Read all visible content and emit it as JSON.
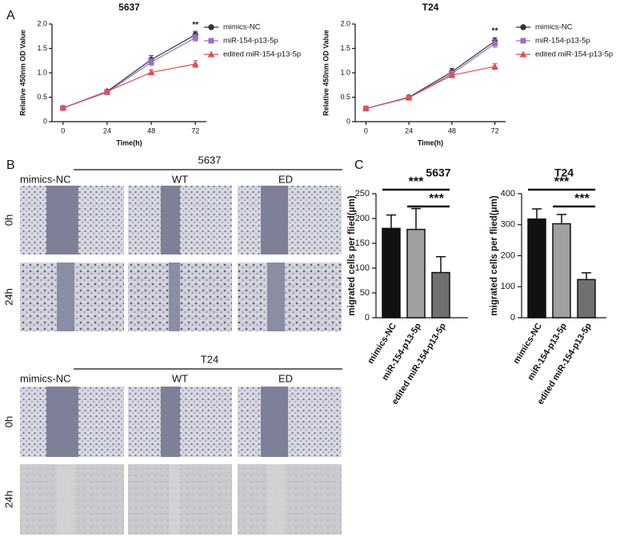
{
  "panel_labels": [
    "A",
    "B",
    "C"
  ],
  "wound_healing": [
    {
      "cell_line": "5637",
      "columns": [
        "mimics-NC",
        "WT",
        "ED"
      ],
      "rows": [
        "0h",
        "24h"
      ]
    },
    {
      "cell_line": "T24",
      "columns": [
        "mimics-NC",
        "WT",
        "ED"
      ],
      "rows": [
        "0h",
        "24h"
      ]
    }
  ],
  "chart_data": [
    {
      "type": "line",
      "title": "5637",
      "x_label": "Time(h)",
      "y_label": "Relative 450nm OD Value",
      "x": [
        0,
        24,
        48,
        72
      ],
      "xlim": [
        -6,
        78
      ],
      "xticks": [
        0,
        24,
        48,
        72
      ],
      "ylim": [
        0,
        2
      ],
      "yticks": [
        0,
        0.5,
        {
          "value": 1,
          "label": "1.0"
        },
        1.5,
        {
          "value": 2,
          "label": "2.0"
        }
      ],
      "annotation": "**",
      "series": [
        {
          "name": "mimics-NC",
          "color": "#333333",
          "marker": "circle",
          "values": [
            0.28,
            0.62,
            1.27,
            1.78
          ],
          "errors": [
            0.02,
            0.04,
            0.08,
            0.07
          ]
        },
        {
          "name": "miR-154-p13-5p",
          "color": "#9b6fc0",
          "marker": "square",
          "values": [
            0.28,
            0.6,
            1.22,
            1.72
          ],
          "errors": [
            0.02,
            0.04,
            0.07,
            0.07
          ]
        },
        {
          "name": "edited miR-154-p13-5p",
          "color": "#e05050",
          "marker": "triangle",
          "values": [
            0.28,
            0.62,
            1.01,
            1.18
          ],
          "errors": [
            0.02,
            0.04,
            0.05,
            0.07
          ]
        }
      ]
    },
    {
      "type": "line",
      "title": "T24",
      "x_label": "Time(h)",
      "y_label": "Relative 450nm OD Value",
      "x": [
        0,
        24,
        48,
        72
      ],
      "xlim": [
        -6,
        78
      ],
      "xticks": [
        0,
        24,
        48,
        72
      ],
      "ylim": [
        0,
        2
      ],
      "yticks": [
        0,
        0.5,
        {
          "value": 1,
          "label": "1.0"
        },
        1.5,
        {
          "value": 2,
          "label": "2.0"
        }
      ],
      "annotation": "**",
      "series": [
        {
          "name": "mimics-NC",
          "color": "#333333",
          "marker": "circle",
          "values": [
            0.27,
            0.5,
            1.02,
            1.65
          ],
          "errors": [
            0.02,
            0.04,
            0.07,
            0.07
          ]
        },
        {
          "name": "miR-154-p13-5p",
          "color": "#9b6fc0",
          "marker": "square",
          "values": [
            0.27,
            0.49,
            0.98,
            1.6
          ],
          "errors": [
            0.02,
            0.04,
            0.06,
            0.08
          ]
        },
        {
          "name": "edited miR-154-p13-5p",
          "color": "#e05050",
          "marker": "triangle",
          "values": [
            0.27,
            0.49,
            0.95,
            1.13
          ],
          "errors": [
            0.02,
            0.03,
            0.05,
            0.06
          ]
        }
      ]
    },
    {
      "type": "bar",
      "title": "5637",
      "y_label": "migrated cells per flied(μm)",
      "categories": [
        "mimics-NC",
        "miR-154-p13-5p",
        "edited miR-154-p13-5p"
      ],
      "values": [
        180,
        178,
        91
      ],
      "errors": [
        27,
        42,
        32
      ],
      "colors": [
        "#111111",
        "#a0a0a0",
        "#707070"
      ],
      "ylim": [
        0,
        250
      ],
      "yticks": [
        0,
        50,
        100,
        150,
        200,
        250
      ],
      "significance": [
        "***",
        "***"
      ]
    },
    {
      "type": "bar",
      "title": "T24",
      "y_label": "migrated cells per flied(μm)",
      "categories": [
        "mimics-NC",
        "miR-154-p13-5p",
        "edited miR-154-p13-5p"
      ],
      "values": [
        318,
        303,
        123
      ],
      "errors": [
        33,
        30,
        22
      ],
      "colors": [
        "#111111",
        "#a0a0a0",
        "#707070"
      ],
      "ylim": [
        0,
        400
      ],
      "yticks": [
        0,
        100,
        200,
        300,
        400
      ],
      "significance": [
        "***",
        "***"
      ]
    }
  ]
}
